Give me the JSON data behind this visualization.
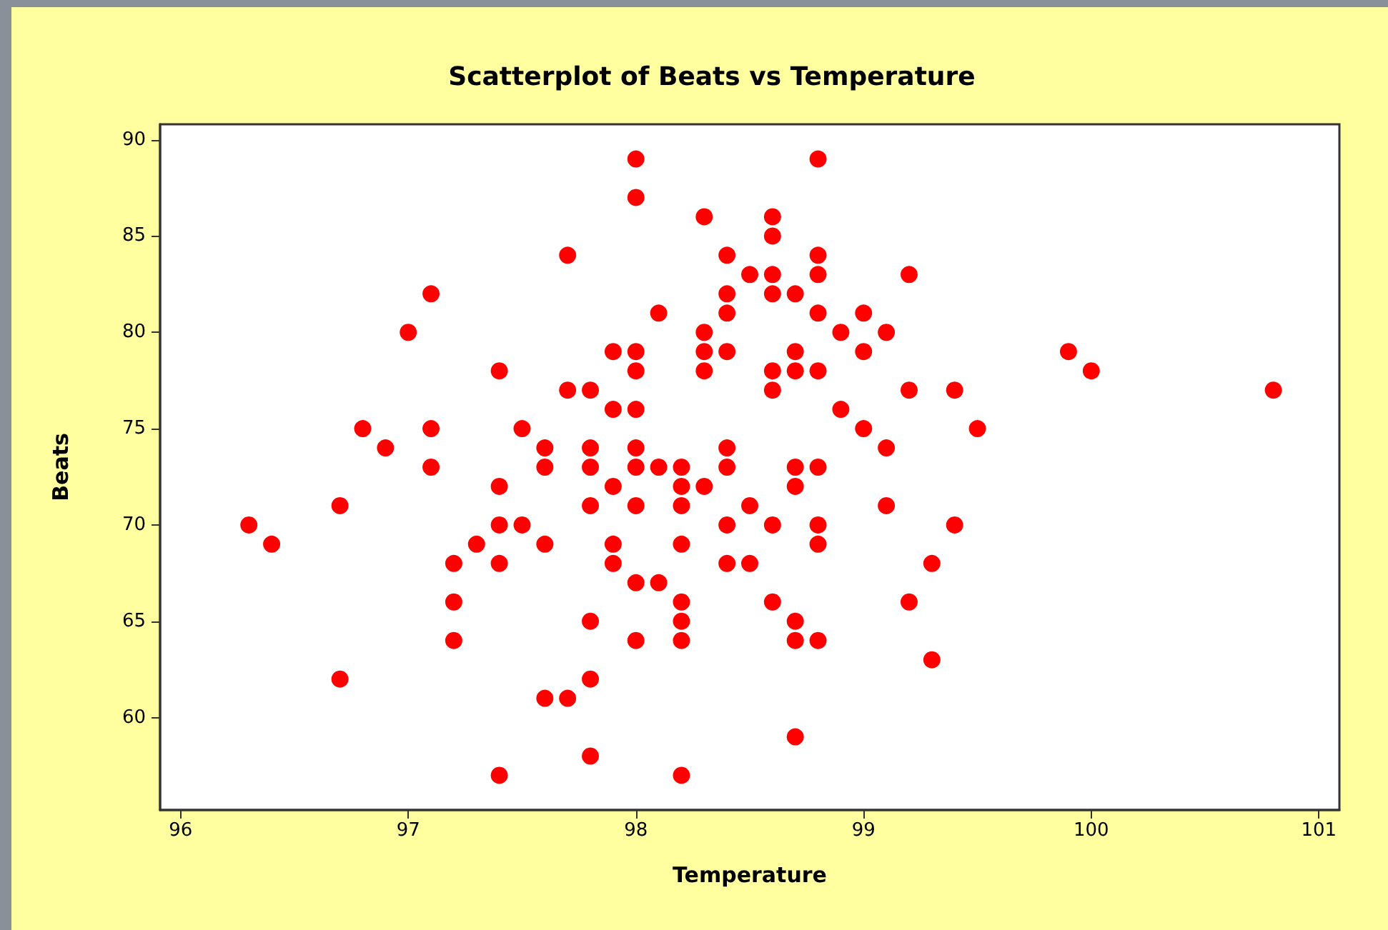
{
  "chart_data": {
    "type": "scatter",
    "title": "Scatterplot of Beats vs Temperature",
    "xlabel": "Temperature",
    "ylabel": "Beats",
    "x": [
      96.3,
      96.4,
      96.7,
      96.7,
      96.8,
      96.9,
      97.0,
      97.1,
      97.1,
      97.1,
      97.2,
      97.2,
      97.2,
      97.3,
      97.4,
      97.4,
      97.4,
      97.4,
      97.4,
      97.5,
      97.5,
      97.6,
      97.6,
      97.6,
      97.6,
      97.7,
      97.7,
      97.7,
      97.8,
      97.8,
      97.8,
      97.8,
      97.8,
      97.8,
      97.8,
      97.9,
      97.9,
      97.9,
      97.9,
      97.9,
      98.0,
      98.0,
      98.0,
      98.0,
      98.0,
      98.0,
      98.0,
      98.0,
      98.0,
      98.0,
      98.1,
      98.1,
      98.1,
      98.2,
      98.2,
      98.2,
      98.2,
      98.2,
      98.2,
      98.2,
      98.2,
      98.3,
      98.3,
      98.3,
      98.3,
      98.3,
      98.4,
      98.4,
      98.4,
      98.4,
      98.4,
      98.4,
      98.4,
      98.4,
      98.5,
      98.5,
      98.5,
      98.6,
      98.6,
      98.6,
      98.6,
      98.6,
      98.6,
      98.6,
      98.6,
      98.7,
      98.7,
      98.7,
      98.7,
      98.7,
      98.7,
      98.7,
      98.7,
      98.8,
      98.8,
      98.8,
      98.8,
      98.8,
      98.8,
      98.8,
      98.8,
      98.8,
      98.9,
      98.9,
      99.0,
      99.0,
      99.0,
      99.1,
      99.1,
      99.1,
      99.2,
      99.2,
      99.2,
      99.3,
      99.3,
      99.4,
      99.4,
      99.5,
      99.9,
      100.0,
      100.8
    ],
    "values": [
      70,
      69,
      71,
      62,
      75,
      74,
      80,
      82,
      75,
      73,
      68,
      66,
      64,
      69,
      78,
      72,
      70,
      68,
      57,
      75,
      70,
      74,
      73,
      69,
      61,
      84,
      77,
      61,
      77,
      74,
      73,
      71,
      65,
      62,
      58,
      79,
      76,
      72,
      69,
      68,
      89,
      87,
      79,
      78,
      76,
      74,
      73,
      71,
      67,
      64,
      81,
      73,
      67,
      73,
      72,
      71,
      69,
      66,
      65,
      64,
      57,
      86,
      80,
      79,
      78,
      72,
      84,
      82,
      81,
      79,
      74,
      73,
      70,
      68,
      83,
      71,
      68,
      86,
      85,
      83,
      82,
      78,
      77,
      70,
      66,
      82,
      79,
      78,
      73,
      72,
      65,
      64,
      59,
      89,
      84,
      83,
      81,
      78,
      73,
      70,
      69,
      64,
      80,
      76,
      81,
      79,
      75,
      80,
      74,
      71,
      83,
      77,
      66,
      68,
      63,
      77,
      70,
      75,
      79,
      78,
      77
    ],
    "color": "#ff0000",
    "marker": "circle",
    "xlim": [
      95.91,
      101.09
    ],
    "ylim": [
      55.2,
      90.8
    ],
    "xticks": [
      96,
      97,
      98,
      99,
      100,
      101
    ],
    "yticks": [
      60,
      65,
      70,
      75,
      80,
      85,
      90
    ]
  }
}
